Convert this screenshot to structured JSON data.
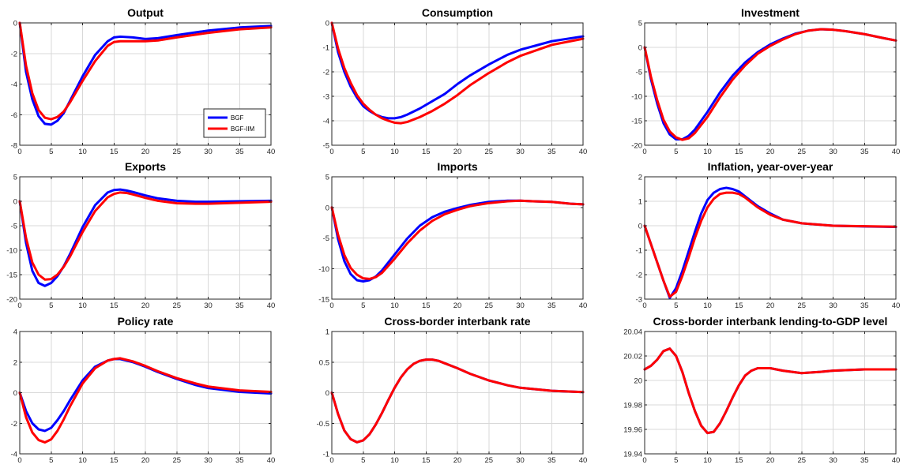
{
  "figure": {
    "series_colors": {
      "BGF": "#0000ff",
      "BGF-IIM": "#ff0000"
    },
    "legend": {
      "panel": "Output",
      "location": "inside-lower-right",
      "entries": [
        "BGF",
        "BGF-IIM"
      ]
    }
  },
  "chart_data": [
    {
      "type": "line",
      "title": "Output",
      "grid": true,
      "xlim": [
        0,
        40
      ],
      "ylim": [
        -8,
        0
      ],
      "xticks": [
        0,
        5,
        10,
        15,
        20,
        25,
        30,
        35,
        40
      ],
      "xtick_labels": [
        "0",
        "5",
        "10",
        "15",
        "20",
        "25",
        "30",
        "35",
        "40"
      ],
      "yticks": [
        -8,
        -6,
        -4,
        -2,
        0
      ],
      "ytick_labels": [
        "-8",
        "-6",
        "-4",
        "-2",
        "0"
      ],
      "x": [
        0,
        1,
        2,
        3,
        4,
        5,
        6,
        7,
        8,
        10,
        12,
        14,
        15,
        16,
        18,
        20,
        22,
        25,
        30,
        35,
        40
      ],
      "series": [
        {
          "name": "BGF",
          "color": "#0000ff",
          "values": [
            0,
            -3.2,
            -5.0,
            -6.1,
            -6.6,
            -6.65,
            -6.4,
            -5.9,
            -5.1,
            -3.5,
            -2.1,
            -1.2,
            -0.95,
            -0.9,
            -0.95,
            -1.05,
            -1.0,
            -0.8,
            -0.5,
            -0.3,
            -0.2
          ]
        },
        {
          "name": "BGF-IIM",
          "color": "#ff0000",
          "values": [
            0,
            -2.8,
            -4.6,
            -5.7,
            -6.2,
            -6.3,
            -6.15,
            -5.8,
            -5.2,
            -3.8,
            -2.5,
            -1.5,
            -1.25,
            -1.2,
            -1.2,
            -1.2,
            -1.15,
            -0.95,
            -0.65,
            -0.42,
            -0.3
          ]
        }
      ]
    },
    {
      "type": "line",
      "title": "Consumption",
      "grid": true,
      "xlim": [
        0,
        40
      ],
      "ylim": [
        -5,
        0
      ],
      "xticks": [
        0,
        5,
        10,
        15,
        20,
        25,
        30,
        35,
        40
      ],
      "xtick_labels": [
        "0",
        "5",
        "10",
        "15",
        "20",
        "25",
        "30",
        "35",
        "40"
      ],
      "yticks": [
        -5,
        -4,
        -3,
        -2,
        -1,
        0
      ],
      "ytick_labels": [
        "-5",
        "-4",
        "-3",
        "-2",
        "-1",
        "0"
      ],
      "x": [
        0,
        1,
        2,
        3,
        4,
        5,
        6,
        7,
        8,
        9,
        10,
        11,
        12,
        14,
        16,
        18,
        20,
        22,
        25,
        28,
        30,
        35,
        40
      ],
      "series": [
        {
          "name": "BGF",
          "color": "#0000ff",
          "values": [
            0,
            -1.2,
            -2.0,
            -2.6,
            -3.05,
            -3.4,
            -3.6,
            -3.75,
            -3.85,
            -3.9,
            -3.9,
            -3.85,
            -3.75,
            -3.5,
            -3.2,
            -2.9,
            -2.5,
            -2.15,
            -1.7,
            -1.3,
            -1.1,
            -0.75,
            -0.55
          ]
        },
        {
          "name": "BGF-IIM",
          "color": "#ff0000",
          "values": [
            0,
            -1.05,
            -1.85,
            -2.45,
            -2.95,
            -3.3,
            -3.55,
            -3.75,
            -3.9,
            -4.0,
            -4.08,
            -4.1,
            -4.05,
            -3.85,
            -3.6,
            -3.3,
            -2.95,
            -2.55,
            -2.05,
            -1.6,
            -1.35,
            -0.9,
            -0.65
          ]
        }
      ]
    },
    {
      "type": "line",
      "title": "Investment",
      "grid": true,
      "xlim": [
        0,
        40
      ],
      "ylim": [
        -20,
        5
      ],
      "xticks": [
        0,
        5,
        10,
        15,
        20,
        25,
        30,
        35,
        40
      ],
      "xtick_labels": [
        "0",
        "5",
        "10",
        "15",
        "20",
        "25",
        "30",
        "35",
        "40"
      ],
      "yticks": [
        -20,
        -15,
        -10,
        -5,
        0,
        5
      ],
      "ytick_labels": [
        "-20",
        "-15",
        "-10",
        "-5",
        "0",
        "5"
      ],
      "x": [
        0,
        1,
        2,
        3,
        4,
        5,
        6,
        7,
        8,
        10,
        12,
        14,
        16,
        18,
        20,
        22,
        24,
        26,
        28,
        30,
        32,
        35,
        38,
        40
      ],
      "series": [
        {
          "name": "BGF",
          "color": "#0000ff",
          "values": [
            0,
            -6.5,
            -11.5,
            -15.5,
            -17.8,
            -18.8,
            -18.8,
            -18.1,
            -16.8,
            -13.2,
            -9.2,
            -5.8,
            -3.1,
            -1.0,
            0.6,
            1.8,
            2.8,
            3.4,
            3.7,
            3.6,
            3.3,
            2.7,
            1.9,
            1.4
          ]
        },
        {
          "name": "BGF-IIM",
          "color": "#ff0000",
          "values": [
            0,
            -6.0,
            -10.8,
            -14.8,
            -17.2,
            -18.4,
            -18.9,
            -18.6,
            -17.5,
            -14.2,
            -10.2,
            -6.6,
            -3.7,
            -1.3,
            0.3,
            1.6,
            2.7,
            3.4,
            3.7,
            3.6,
            3.3,
            2.7,
            1.9,
            1.4
          ]
        }
      ]
    },
    {
      "type": "line",
      "title": "Exports",
      "grid": true,
      "xlim": [
        0,
        40
      ],
      "ylim": [
        -20,
        5
      ],
      "xticks": [
        0,
        5,
        10,
        15,
        20,
        25,
        30,
        35,
        40
      ],
      "xtick_labels": [
        "0",
        "5",
        "10",
        "15",
        "20",
        "25",
        "30",
        "35",
        "40"
      ],
      "yticks": [
        -20,
        -15,
        -10,
        -5,
        0,
        5
      ],
      "ytick_labels": [
        "-20",
        "-15",
        "-10",
        "-5",
        "0",
        "5"
      ],
      "x": [
        0,
        1,
        2,
        3,
        4,
        5,
        6,
        7,
        8,
        10,
        12,
        14,
        15,
        16,
        17,
        18,
        20,
        22,
        25,
        28,
        30,
        35,
        40
      ],
      "series": [
        {
          "name": "BGF",
          "color": "#0000ff",
          "values": [
            0,
            -8.5,
            -14.2,
            -16.7,
            -17.3,
            -16.7,
            -15.3,
            -13.3,
            -10.8,
            -5.3,
            -0.8,
            1.8,
            2.3,
            2.4,
            2.2,
            1.9,
            1.2,
            0.6,
            0.1,
            -0.1,
            -0.1,
            0.0,
            0.1
          ]
        },
        {
          "name": "BGF-IIM",
          "color": "#ff0000",
          "values": [
            0,
            -7.5,
            -12.5,
            -15.0,
            -16.0,
            -15.9,
            -15.0,
            -13.4,
            -11.3,
            -6.3,
            -2.0,
            0.8,
            1.5,
            1.8,
            1.7,
            1.4,
            0.7,
            0.1,
            -0.4,
            -0.5,
            -0.5,
            -0.3,
            -0.1
          ]
        }
      ]
    },
    {
      "type": "line",
      "title": "Imports",
      "grid": true,
      "xlim": [
        0,
        40
      ],
      "ylim": [
        -15,
        5
      ],
      "xticks": [
        0,
        5,
        10,
        15,
        20,
        25,
        30,
        35,
        40
      ],
      "xtick_labels": [
        "0",
        "5",
        "10",
        "15",
        "20",
        "25",
        "30",
        "35",
        "40"
      ],
      "yticks": [
        -15,
        -10,
        -5,
        0,
        5
      ],
      "ytick_labels": [
        "-15",
        "-10",
        "-5",
        "0",
        "5"
      ],
      "x": [
        0,
        1,
        2,
        3,
        4,
        5,
        6,
        7,
        8,
        10,
        12,
        14,
        16,
        18,
        20,
        22,
        25,
        28,
        30,
        32,
        35,
        38,
        40
      ],
      "series": [
        {
          "name": "BGF",
          "color": "#0000ff",
          "values": [
            0,
            -5.2,
            -8.8,
            -10.9,
            -11.9,
            -12.1,
            -11.9,
            -11.3,
            -10.3,
            -7.7,
            -5.1,
            -3.0,
            -1.6,
            -0.7,
            -0.1,
            0.4,
            0.9,
            1.1,
            1.1,
            1.0,
            0.9,
            0.6,
            0.5
          ]
        },
        {
          "name": "BGF-IIM",
          "color": "#ff0000",
          "values": [
            0,
            -4.5,
            -7.8,
            -9.9,
            -11.0,
            -11.6,
            -11.7,
            -11.4,
            -10.7,
            -8.4,
            -5.9,
            -3.8,
            -2.2,
            -1.1,
            -0.4,
            0.2,
            0.7,
            1.0,
            1.1,
            1.0,
            0.9,
            0.6,
            0.5
          ]
        }
      ]
    },
    {
      "type": "line",
      "title": "Inflation, year-over-year",
      "grid": true,
      "xlim": [
        0,
        40
      ],
      "ylim": [
        -3,
        2
      ],
      "xticks": [
        0,
        5,
        10,
        15,
        20,
        25,
        30,
        35,
        40
      ],
      "xtick_labels": [
        "0",
        "5",
        "10",
        "15",
        "20",
        "25",
        "30",
        "35",
        "40"
      ],
      "yticks": [
        -3,
        -2,
        -1,
        0,
        1,
        2
      ],
      "ytick_labels": [
        "-3",
        "-2",
        "-1",
        "0",
        "1",
        "2"
      ],
      "x": [
        0,
        1,
        2,
        3,
        4,
        5,
        6,
        7,
        8,
        9,
        10,
        11,
        12,
        13,
        14,
        15,
        16,
        17,
        18,
        20,
        22,
        25,
        30,
        35,
        40
      ],
      "series": [
        {
          "name": "BGF",
          "color": "#0000ff",
          "values": [
            0,
            -0.75,
            -1.5,
            -2.25,
            -2.95,
            -2.55,
            -1.85,
            -1.05,
            -0.25,
            0.5,
            1.05,
            1.35,
            1.5,
            1.55,
            1.5,
            1.4,
            1.2,
            1.0,
            0.8,
            0.5,
            0.25,
            0.1,
            0.0,
            -0.03,
            -0.05
          ]
        },
        {
          "name": "BGF-IIM",
          "color": "#ff0000",
          "values": [
            0,
            -0.75,
            -1.5,
            -2.25,
            -2.9,
            -2.7,
            -2.05,
            -1.3,
            -0.5,
            0.2,
            0.75,
            1.1,
            1.3,
            1.35,
            1.35,
            1.3,
            1.15,
            0.95,
            0.75,
            0.45,
            0.25,
            0.1,
            0.0,
            -0.02,
            -0.04
          ]
        }
      ]
    },
    {
      "type": "line",
      "title": "Policy rate",
      "grid": true,
      "xlim": [
        0,
        40
      ],
      "ylim": [
        -4,
        4
      ],
      "xticks": [
        0,
        5,
        10,
        15,
        20,
        25,
        30,
        35,
        40
      ],
      "xtick_labels": [
        "0",
        "5",
        "10",
        "15",
        "20",
        "25",
        "30",
        "35",
        "40"
      ],
      "yticks": [
        -4,
        -2,
        0,
        2,
        4
      ],
      "ytick_labels": [
        "-4",
        "-2",
        "0",
        "2",
        "4"
      ],
      "x": [
        0,
        1,
        2,
        3,
        4,
        5,
        6,
        7,
        8,
        10,
        12,
        14,
        15,
        16,
        18,
        20,
        22,
        25,
        28,
        30,
        35,
        40
      ],
      "series": [
        {
          "name": "BGF",
          "color": "#0000ff",
          "values": [
            0,
            -1.2,
            -2.0,
            -2.4,
            -2.5,
            -2.3,
            -1.8,
            -1.2,
            -0.5,
            0.8,
            1.7,
            2.1,
            2.2,
            2.2,
            2.0,
            1.7,
            1.35,
            0.9,
            0.5,
            0.3,
            0.05,
            -0.05
          ]
        },
        {
          "name": "BGF-IIM",
          "color": "#ff0000",
          "values": [
            0,
            -1.6,
            -2.6,
            -3.1,
            -3.25,
            -3.05,
            -2.5,
            -1.75,
            -0.9,
            0.6,
            1.6,
            2.1,
            2.2,
            2.25,
            2.05,
            1.75,
            1.4,
            0.95,
            0.6,
            0.4,
            0.15,
            0.05
          ]
        }
      ]
    },
    {
      "type": "line",
      "title": "Cross-border interbank rate",
      "grid": true,
      "xlim": [
        0,
        40
      ],
      "ylim": [
        -1,
        1
      ],
      "xticks": [
        0,
        5,
        10,
        15,
        20,
        25,
        30,
        35,
        40
      ],
      "xtick_labels": [
        "0",
        "5",
        "10",
        "15",
        "20",
        "25",
        "30",
        "35",
        "40"
      ],
      "yticks": [
        -1,
        -0.5,
        0,
        0.5,
        1
      ],
      "ytick_labels": [
        "-1",
        "-0.5",
        "0",
        "0.5",
        "1"
      ],
      "x": [
        0,
        1,
        2,
        3,
        4,
        5,
        6,
        7,
        8,
        9,
        10,
        11,
        12,
        13,
        14,
        15,
        16,
        17,
        18,
        20,
        22,
        25,
        28,
        30,
        35,
        40
      ],
      "series": [
        {
          "name": "BGF",
          "color": "#0000ff",
          "values": [
            0,
            -0.35,
            -0.62,
            -0.76,
            -0.81,
            -0.78,
            -0.68,
            -0.52,
            -0.33,
            -0.12,
            0.08,
            0.25,
            0.38,
            0.47,
            0.52,
            0.54,
            0.54,
            0.52,
            0.48,
            0.4,
            0.31,
            0.2,
            0.12,
            0.08,
            0.03,
            0.01
          ]
        },
        {
          "name": "BGF-IIM",
          "color": "#ff0000",
          "values": [
            0,
            -0.35,
            -0.62,
            -0.76,
            -0.81,
            -0.78,
            -0.68,
            -0.52,
            -0.33,
            -0.12,
            0.08,
            0.25,
            0.38,
            0.47,
            0.52,
            0.54,
            0.54,
            0.52,
            0.48,
            0.4,
            0.31,
            0.2,
            0.12,
            0.08,
            0.03,
            0.01
          ]
        }
      ]
    },
    {
      "type": "line",
      "title": "Cross-border interbank lending-to-GDP level",
      "grid": true,
      "xlim": [
        0,
        40
      ],
      "ylim": [
        19.94,
        20.04
      ],
      "xticks": [
        0,
        5,
        10,
        15,
        20,
        25,
        30,
        35,
        40
      ],
      "xtick_labels": [
        "0",
        "5",
        "10",
        "15",
        "20",
        "25",
        "30",
        "35",
        "40"
      ],
      "yticks": [
        19.94,
        19.96,
        19.98,
        20,
        20.02,
        20.04
      ],
      "ytick_labels": [
        "19.94",
        "19.96",
        "19.98",
        "20",
        "20.02",
        "20.04"
      ],
      "x": [
        0,
        1,
        2,
        3,
        4,
        5,
        6,
        7,
        8,
        9,
        10,
        11,
        12,
        13,
        14,
        15,
        16,
        17,
        18,
        19,
        20,
        22,
        25,
        28,
        30,
        35,
        40
      ],
      "series": [
        {
          "name": "BGF",
          "color": "#0000ff",
          "values": [
            20.009,
            20.012,
            20.017,
            20.024,
            20.026,
            20.02,
            20.007,
            19.99,
            19.975,
            19.963,
            19.957,
            19.958,
            19.965,
            19.975,
            19.986,
            19.996,
            20.004,
            20.008,
            20.01,
            20.01,
            20.01,
            20.008,
            20.006,
            20.007,
            20.008,
            20.009,
            20.009
          ]
        },
        {
          "name": "BGF-IIM",
          "color": "#ff0000",
          "values": [
            20.009,
            20.012,
            20.017,
            20.024,
            20.026,
            20.02,
            20.007,
            19.99,
            19.975,
            19.963,
            19.957,
            19.958,
            19.965,
            19.975,
            19.986,
            19.996,
            20.004,
            20.008,
            20.01,
            20.01,
            20.01,
            20.008,
            20.006,
            20.007,
            20.008,
            20.009,
            20.009
          ]
        }
      ]
    }
  ]
}
